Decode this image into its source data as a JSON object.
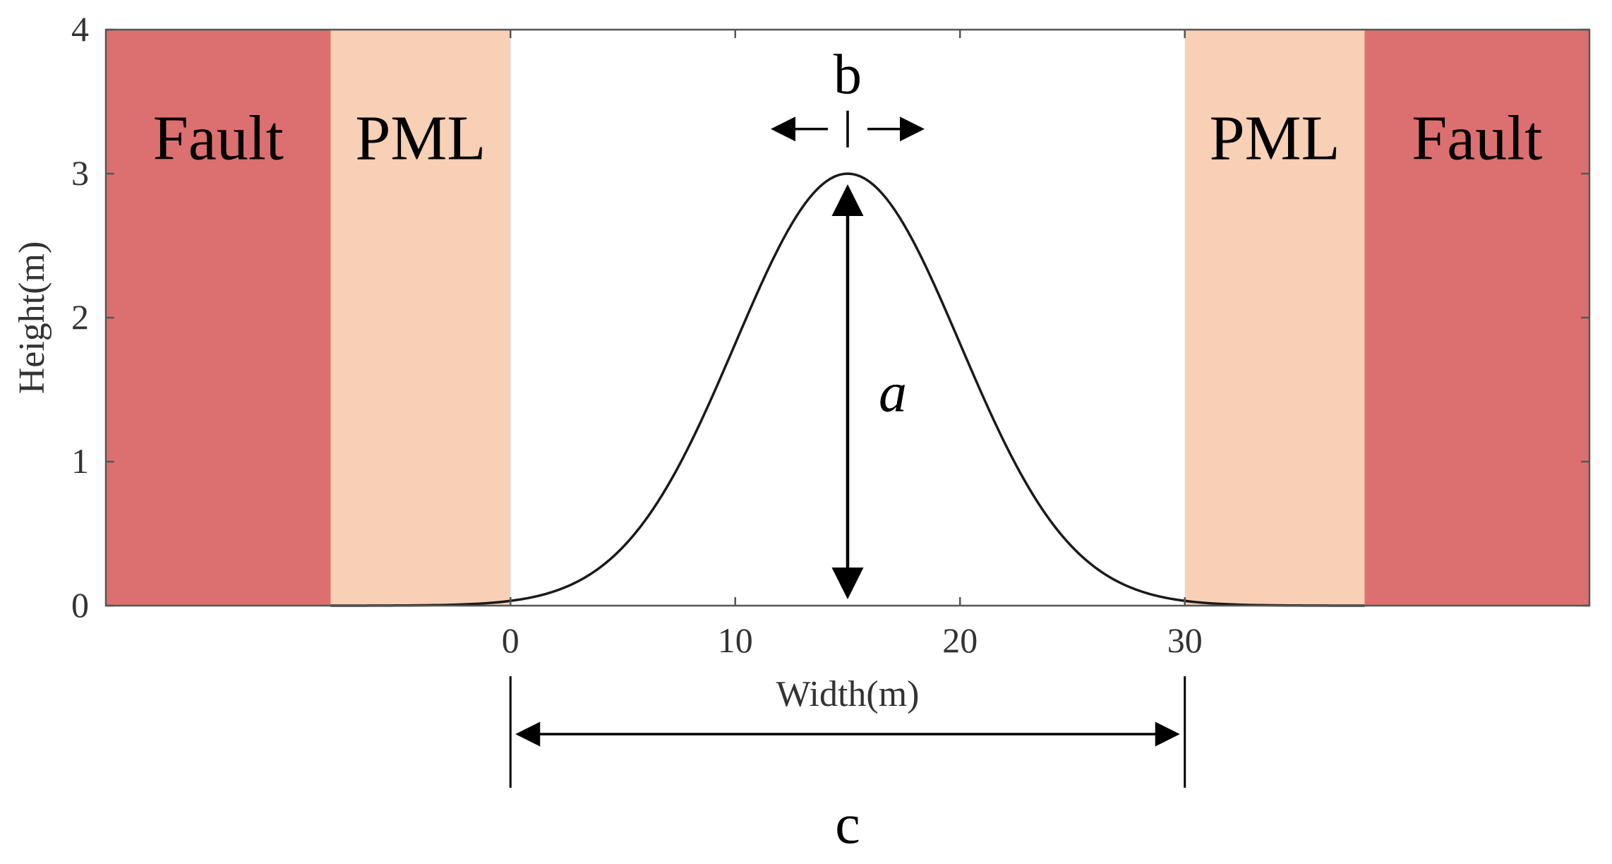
{
  "chart_data": {
    "type": "line",
    "xlabel": "Width(m)",
    "ylabel": "Height(m)",
    "xlim": [
      -18,
      48
    ],
    "ylim": [
      0,
      4
    ],
    "xticks": [
      0,
      10,
      20,
      30
    ],
    "yticks": [
      0,
      1,
      2,
      3,
      4
    ],
    "curve": {
      "kind": "gaussian",
      "amplitude": 3,
      "center": 15,
      "sigma": 5,
      "x_range": [
        -8,
        38
      ]
    },
    "regions": [
      {
        "label": "Fault",
        "x0": -18,
        "x1": -8,
        "color": "#dc7070"
      },
      {
        "label": "PML",
        "x0": -8,
        "x1": 0,
        "color": "#f7d0b5"
      },
      {
        "label": "PML",
        "x0": 30,
        "x1": 38,
        "color": "#f7d0b5"
      },
      {
        "label": "Fault",
        "x0": 38,
        "x1": 48,
        "color": "#dc7070"
      }
    ],
    "annotations": {
      "height": "a",
      "width_at_peak": "b",
      "domain_width": "c"
    },
    "grid": false
  },
  "colors": {
    "fault": "#dc7070",
    "pml": "#f7d0b5",
    "axis": "#555555",
    "curve": "#1a1a1a"
  }
}
